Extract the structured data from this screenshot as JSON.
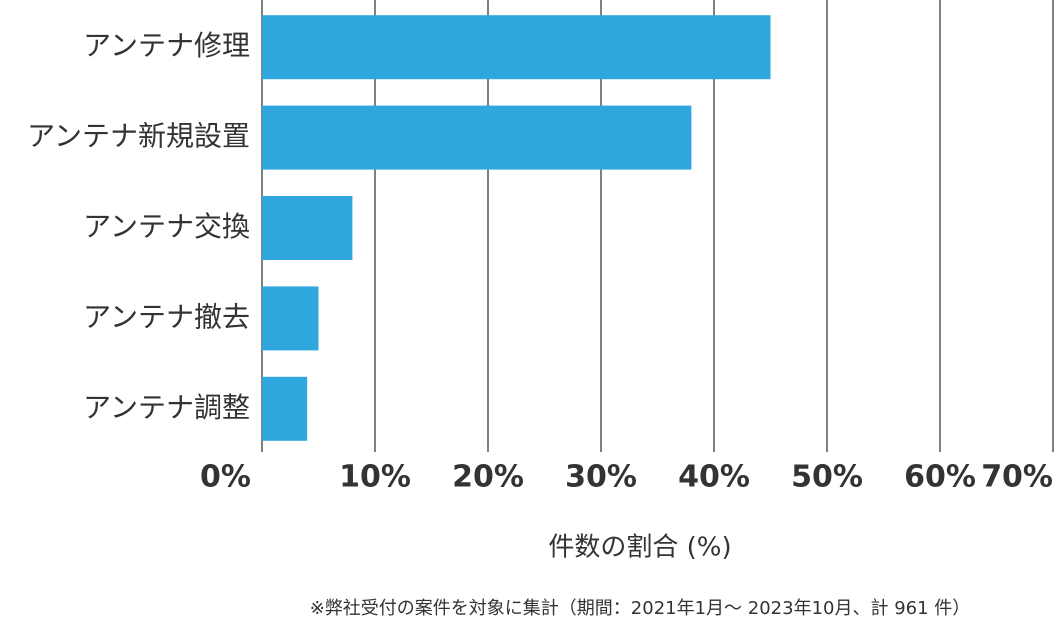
{
  "chart_data": {
    "type": "bar",
    "orientation": "horizontal",
    "categories": [
      "アンテナ修理",
      "アンテナ新規設置",
      "アンテナ交換",
      "アンテナ撤去",
      "アンテナ調整"
    ],
    "values": [
      45,
      38,
      8,
      5,
      4
    ],
    "color": "#2fa7de",
    "xlabel": "件数の割合 (%)",
    "xlim": [
      0,
      70
    ],
    "xticks": [
      {
        "value": 0,
        "label": "0%"
      },
      {
        "value": 10,
        "label": "10%"
      },
      {
        "value": 20,
        "label": "20%"
      },
      {
        "value": 30,
        "label": "30%"
      },
      {
        "value": 40,
        "label": "40%"
      },
      {
        "value": 50,
        "label": "50%"
      },
      {
        "value": 60,
        "label": "60%"
      },
      {
        "value": 70,
        "label": "70%"
      }
    ],
    "grid": true,
    "note": "※弊社受付の案件を対象に集計（期間：2021年1月～ 2023年10月、計 961 件）"
  }
}
